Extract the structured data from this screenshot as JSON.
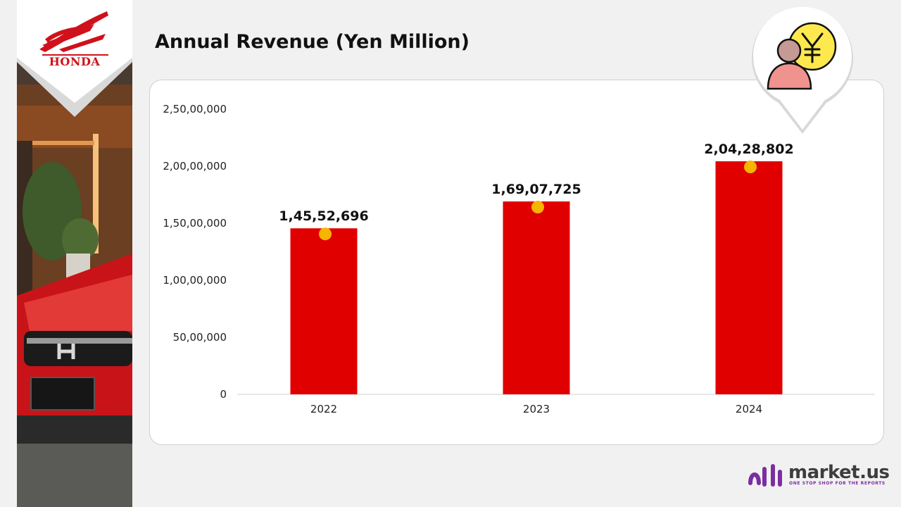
{
  "header": {
    "title": "Annual Revenue (Yen Million)"
  },
  "brand": {
    "logo_text": "HONDA",
    "accent": "#d0111b"
  },
  "footer": {
    "name": "market.us",
    "tagline": "ONE STOP SHOP FOR THE REPORTS",
    "accent": "#7b2f9e"
  },
  "icons": {
    "pin": "revenue-person-yen-icon",
    "footer": "market-us-logo-icon"
  },
  "chart_data": {
    "type": "bar",
    "title": "Annual Revenue (Yen Million)",
    "categories": [
      "2022",
      "2023",
      "2024"
    ],
    "values": [
      14552696,
      16907725,
      20428802
    ],
    "value_labels": [
      "1,45,52,696",
      "1,69,07,725",
      "2,04,28,802"
    ],
    "ylim": [
      0,
      25000000
    ],
    "yticks": [
      0,
      5000000,
      10000000,
      15000000,
      20000000,
      25000000
    ],
    "ytick_labels": [
      "0",
      "50,00,000",
      "1,00,00,000",
      "1,50,00,000",
      "2,00,00,000",
      "2,50,00,000"
    ],
    "xlabel": "",
    "ylabel": "",
    "grid": false,
    "legend": "none",
    "bar_color": "#e00000",
    "marker_color": "#f7b500"
  }
}
